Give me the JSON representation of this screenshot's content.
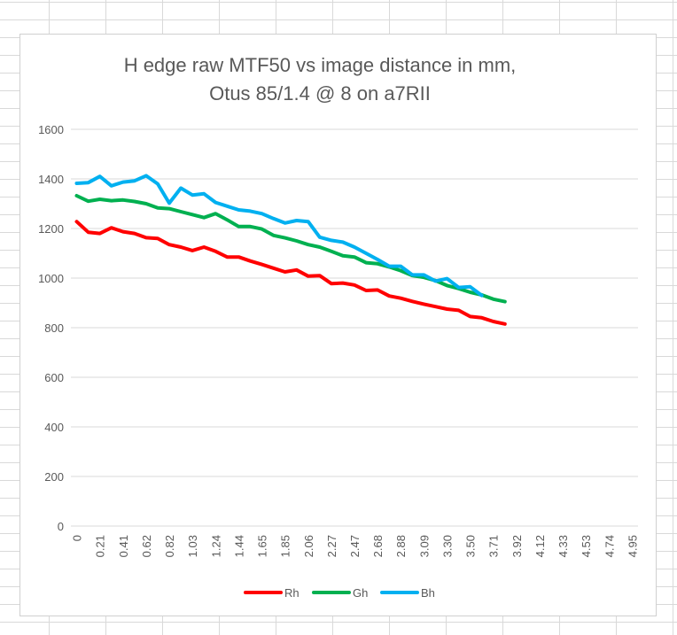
{
  "chart_data": {
    "type": "line",
    "title": [
      "H edge raw MTF50 vs image distance in mm,",
      "Otus 85/1.4 @ 8 on a7RII"
    ],
    "xlabel": "",
    "ylabel": "",
    "ylim": [
      0,
      1600
    ],
    "y_ticks": [
      "0",
      "200",
      "400",
      "600",
      "800",
      "1000",
      "1200",
      "1400",
      "1600"
    ],
    "x_ticks": [
      "0",
      "0.21",
      "0.41",
      "0.62",
      "0.82",
      "1.03",
      "1.24",
      "1.44",
      "1.65",
      "1.85",
      "2.06",
      "2.27",
      "2.47",
      "2.68",
      "2.88",
      "3.09",
      "3.30",
      "3.50",
      "3.71",
      "3.92",
      "4.12",
      "4.33",
      "4.53",
      "4.74",
      "4.95"
    ],
    "x_count": 49,
    "grid": "horizontal",
    "legend_position": "bottom",
    "series": [
      {
        "name": "Rh",
        "color": "#ff0000",
        "values": [
          1228,
          1185,
          1180,
          1203,
          1187,
          1180,
          1163,
          1160,
          1135,
          1125,
          1111,
          1125,
          1108,
          1085,
          1085,
          1069,
          1055,
          1040,
          1025,
          1033,
          1008,
          1010,
          978,
          980,
          972,
          950,
          952,
          928,
          919,
          906,
          895,
          885,
          875,
          870,
          845,
          840,
          825,
          815
        ]
      },
      {
        "name": "Gh",
        "color": "#00b050",
        "values": [
          1332,
          1310,
          1318,
          1312,
          1315,
          1309,
          1300,
          1283,
          1280,
          1268,
          1256,
          1244,
          1260,
          1235,
          1208,
          1208,
          1198,
          1172,
          1162,
          1150,
          1135,
          1125,
          1108,
          1090,
          1085,
          1062,
          1058,
          1045,
          1030,
          1010,
          1003,
          990,
          970,
          958,
          943,
          932,
          915,
          905
        ]
      },
      {
        "name": "Bh",
        "color": "#00b0f0",
        "values": [
          1382,
          1385,
          1410,
          1372,
          1387,
          1392,
          1413,
          1380,
          1302,
          1363,
          1335,
          1340,
          1305,
          1290,
          1275,
          1270,
          1260,
          1240,
          1222,
          1232,
          1228,
          1165,
          1152,
          1145,
          1125,
          1100,
          1075,
          1048,
          1048,
          1013,
          1013,
          988,
          998,
          962,
          965,
          930
        ]
      }
    ]
  }
}
